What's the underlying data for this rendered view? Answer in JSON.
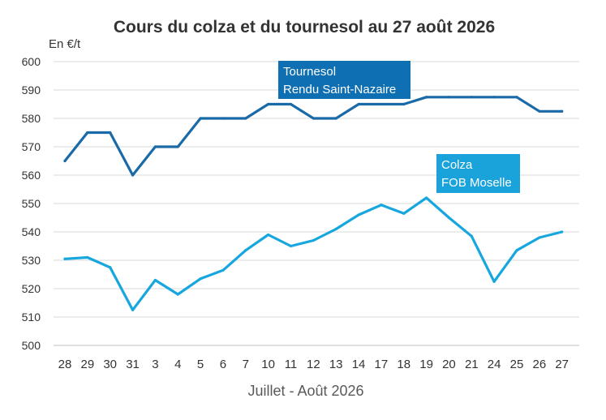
{
  "chart_data": {
    "type": "line",
    "title": "Cours du colza et du tournesol au 27 août 2026",
    "ylabel": "En €/t",
    "xlabel": "Juillet - Août 2026",
    "ylim": [
      500,
      600
    ],
    "yticks": [
      500,
      510,
      520,
      530,
      540,
      550,
      560,
      570,
      580,
      590,
      600
    ],
    "grid": true,
    "categories": [
      "28",
      "29",
      "30",
      "31",
      "3",
      "4",
      "5",
      "6",
      "7",
      "10",
      "11",
      "12",
      "13",
      "14",
      "17",
      "18",
      "19",
      "20",
      "21",
      "24",
      "25",
      "26",
      "27"
    ],
    "series": [
      {
        "label_lines": [
          "Tournesol",
          "Rendu Saint-Nazaire"
        ],
        "color": "#1a6aa8",
        "label_bg": "#0e6fb3",
        "values": [
          565,
          575,
          575,
          560,
          570,
          570,
          580,
          580,
          580,
          585,
          585,
          580,
          580,
          585,
          585,
          585,
          587.5,
          587.5,
          587.5,
          587.5,
          587.5,
          582.5,
          582.5
        ]
      },
      {
        "label_lines": [
          "Colza",
          "FOB Moselle"
        ],
        "color": "#17a7de",
        "label_bg": "#1aa3da",
        "values": [
          530.5,
          531,
          527.5,
          512.5,
          523,
          518,
          523.5,
          526.5,
          533.5,
          539,
          535,
          537,
          541,
          546,
          549.5,
          546.5,
          552,
          545,
          538.5,
          522.5,
          533.5,
          538,
          540
        ]
      }
    ]
  }
}
